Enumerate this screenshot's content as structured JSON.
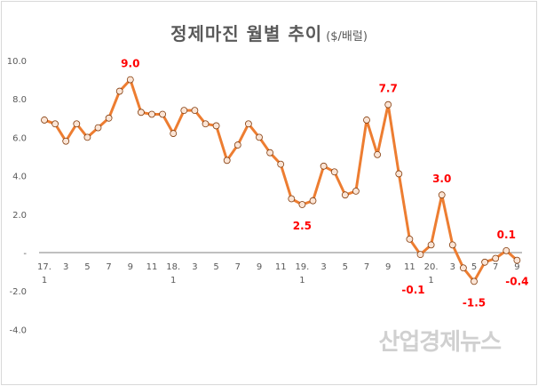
{
  "title": "정제마진 월별 추이",
  "unit": "($/배럴)",
  "watermark": "산업경제뉴스",
  "chart_data": {
    "type": "line",
    "title": "정제마진 월별 추이 ($/배럴)",
    "x": [
      "17.1",
      "17.2",
      "17.3",
      "17.4",
      "17.5",
      "17.6",
      "17.7",
      "17.8",
      "17.9",
      "17.10",
      "17.11",
      "17.12",
      "18.1",
      "18.2",
      "18.3",
      "18.4",
      "18.5",
      "18.6",
      "18.7",
      "18.8",
      "18.9",
      "18.10",
      "18.11",
      "18.12",
      "19.1",
      "19.2",
      "19.3",
      "19.4",
      "19.5",
      "19.6",
      "19.7",
      "19.8",
      "19.9",
      "19.10",
      "19.11",
      "19.12",
      "20.1",
      "20.2",
      "20.3",
      "20.4",
      "20.5",
      "20.6",
      "20.7",
      "20.8",
      "20.9"
    ],
    "values": [
      6.9,
      6.7,
      5.8,
      6.7,
      6.0,
      6.5,
      7.0,
      8.4,
      9.0,
      7.3,
      7.2,
      7.2,
      6.2,
      7.4,
      7.4,
      6.7,
      6.6,
      4.8,
      5.6,
      6.7,
      6.0,
      5.2,
      4.6,
      2.8,
      2.5,
      2.7,
      4.5,
      4.2,
      3.0,
      3.2,
      6.9,
      5.1,
      7.7,
      4.1,
      0.7,
      -0.1,
      0.4,
      3.0,
      0.4,
      -0.8,
      -1.5,
      -0.5,
      -0.3,
      0.1,
      -0.4
    ],
    "x_tick_labels": [
      {
        "index": 0,
        "top": "17.",
        "bottom": "1"
      },
      {
        "index": 2,
        "top": "3"
      },
      {
        "index": 4,
        "top": "5"
      },
      {
        "index": 6,
        "top": "7"
      },
      {
        "index": 8,
        "top": "9"
      },
      {
        "index": 10,
        "top": "11"
      },
      {
        "index": 12,
        "top": "18.",
        "bottom": "1"
      },
      {
        "index": 14,
        "top": "3"
      },
      {
        "index": 16,
        "top": "5"
      },
      {
        "index": 18,
        "top": "7"
      },
      {
        "index": 20,
        "top": "9"
      },
      {
        "index": 22,
        "top": "11"
      },
      {
        "index": 24,
        "top": "19.",
        "bottom": "1"
      },
      {
        "index": 26,
        "top": "3"
      },
      {
        "index": 28,
        "top": "5"
      },
      {
        "index": 30,
        "top": "7"
      },
      {
        "index": 32,
        "top": "9"
      },
      {
        "index": 34,
        "top": "11"
      },
      {
        "index": 36,
        "top": "20.",
        "bottom": "1"
      },
      {
        "index": 38,
        "top": "3"
      },
      {
        "index": 40,
        "top": "5"
      },
      {
        "index": 42,
        "top": "7"
      },
      {
        "index": 44,
        "top": "9"
      }
    ],
    "y_ticks": [
      {
        "value": 10,
        "label": "10.0"
      },
      {
        "value": 8,
        "label": "8.0"
      },
      {
        "value": 6,
        "label": "6.0"
      },
      {
        "value": 4,
        "label": "4.0"
      },
      {
        "value": 2,
        "label": "2.0"
      },
      {
        "value": 0,
        "label": "-"
      },
      {
        "value": -2,
        "label": "-2.0"
      },
      {
        "value": -4,
        "label": "-4.0"
      }
    ],
    "ylim": [
      -4,
      10
    ],
    "grid": false,
    "annotations": [
      {
        "index": 8,
        "label": "9.0",
        "position": "above"
      },
      {
        "index": 24,
        "label": "2.5",
        "position": "below"
      },
      {
        "index": 32,
        "label": "7.7",
        "position": "above"
      },
      {
        "index": 35,
        "label": "-0.1",
        "position": "below"
      },
      {
        "index": 37,
        "label": "3.0",
        "position": "above"
      },
      {
        "index": 40,
        "label": "-1.5",
        "position": "below"
      },
      {
        "index": 43,
        "label": "0.1",
        "position": "above"
      },
      {
        "index": 44,
        "label": "-0.4",
        "position": "below"
      }
    ],
    "colors": {
      "line": "#ed7d31",
      "marker_fill": "#fbe5d6",
      "marker_edge": "#843c0c",
      "annotation": "#ff0000",
      "axis_text": "#595959"
    }
  }
}
